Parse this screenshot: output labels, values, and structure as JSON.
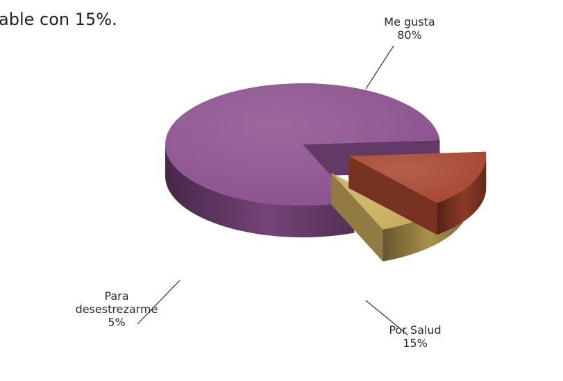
{
  "intro_text": "able con 15%.",
  "chart_data": {
    "type": "pie",
    "title": "",
    "slices": [
      {
        "label_lines": [
          "Me gusta"
        ],
        "value": 80,
        "value_label": "80%",
        "color": "#8a4f8d"
      },
      {
        "label_lines": [
          "Por Salud"
        ],
        "value": 15,
        "value_label": "15%",
        "color": "#a5452e"
      },
      {
        "label_lines": [
          "Para",
          "desestrezarme"
        ],
        "value": 5,
        "value_label": "5%",
        "color": "#c9ab5c"
      }
    ],
    "style": "3d-exploded"
  }
}
